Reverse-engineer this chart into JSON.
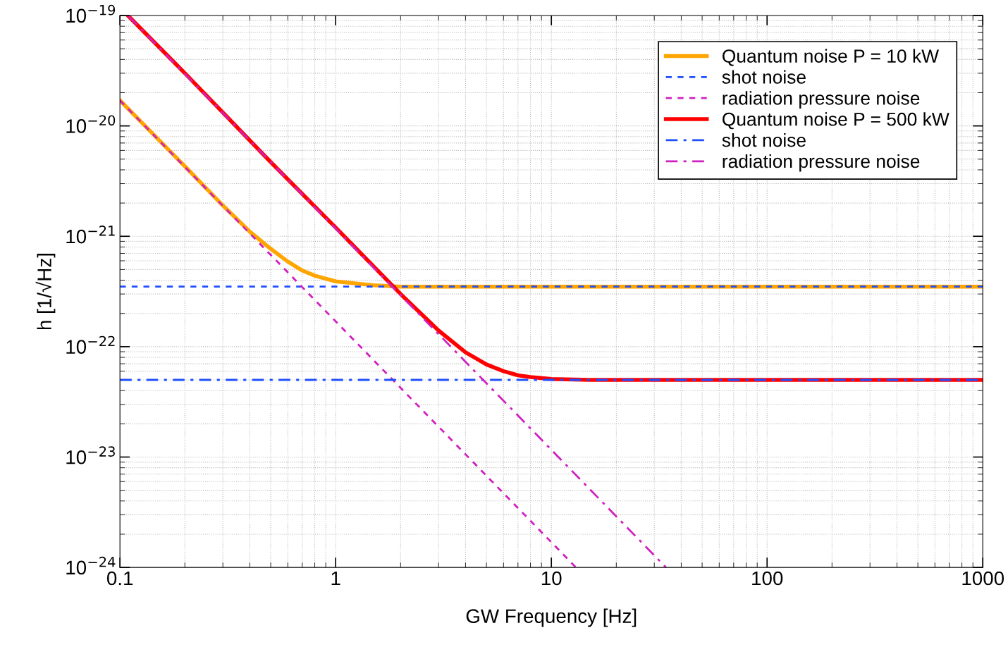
{
  "chart_data": {
    "type": "line",
    "xlabel": "GW Frequency [Hz]",
    "ylabel": "h [1/√Hz]",
    "log": "xy",
    "grid": true,
    "legend": "top right",
    "xlim": [
      0.1,
      1000
    ],
    "xticks": [
      0.1,
      1,
      10,
      100,
      1000
    ],
    "ylim": [
      1e-24,
      1e-19
    ],
    "yticks": [
      {
        "value": 1e-24,
        "label": "10$^{−24}$"
      },
      {
        "value": 1e-23,
        "label": "10$^{−23}$"
      },
      {
        "value": 1e-22,
        "label": "10$^{−22}$"
      },
      {
        "value": 1e-21,
        "label": "10$^{−21}$"
      },
      {
        "value": 1e-20,
        "label": "10$^{−20}$"
      },
      {
        "value": 1e-19,
        "label": "10$^{−19}$"
      }
    ],
    "series": [
      {
        "name": "Quantum noise P = 10 kW",
        "color": "#ffa500",
        "line_style": "solid",
        "x": [
          0.1,
          0.2,
          0.3,
          0.4,
          0.5,
          0.6,
          0.7,
          0.8,
          1,
          1.5,
          2,
          3,
          1000
        ],
        "values": [
          1.7e-20,
          4.3e-21,
          1.9e-21,
          1.1e-21,
          7.7e-22,
          5.9e-22,
          4.9e-22,
          4.4e-22,
          3.9e-22,
          3.6e-22,
          3.5e-22,
          3.5e-22,
          3.5e-22
        ]
      },
      {
        "name": "shot noise",
        "color": "#1f4fff",
        "line_style": "dashed",
        "x": [
          0.1,
          1000
        ],
        "values": [
          3.5e-22,
          3.5e-22
        ]
      },
      {
        "name": "radiation pressure noise",
        "color": "#d020c0",
        "line_style": "dashed",
        "x": [
          0.1,
          13
        ],
        "values": [
          1.7e-20,
          1e-24
        ]
      },
      {
        "name": "Quantum noise P = 500 kW",
        "color": "#ff0000",
        "line_style": "solid",
        "x": [
          0.11,
          0.2,
          0.5,
          1,
          2,
          3,
          4,
          5,
          6,
          7,
          8,
          10,
          15,
          1000
        ],
        "values": [
          9.8e-20,
          3e-20,
          4.7e-21,
          1.2e-21,
          3e-22,
          1.4e-22,
          8.9e-23,
          6.9e-23,
          6e-23,
          5.5e-23,
          5.3e-23,
          5.1e-23,
          5e-23,
          5e-23
        ]
      },
      {
        "name": "shot noise",
        "color": "#1f4fff",
        "line_style": "dashdot",
        "x": [
          0.1,
          1000
        ],
        "values": [
          5e-23,
          5e-23
        ]
      },
      {
        "name": "radiation pressure noise",
        "color": "#d020c0",
        "line_style": "dashdot",
        "x": [
          0.11,
          34
        ],
        "values": [
          9.8e-20,
          1e-24
        ]
      }
    ]
  }
}
